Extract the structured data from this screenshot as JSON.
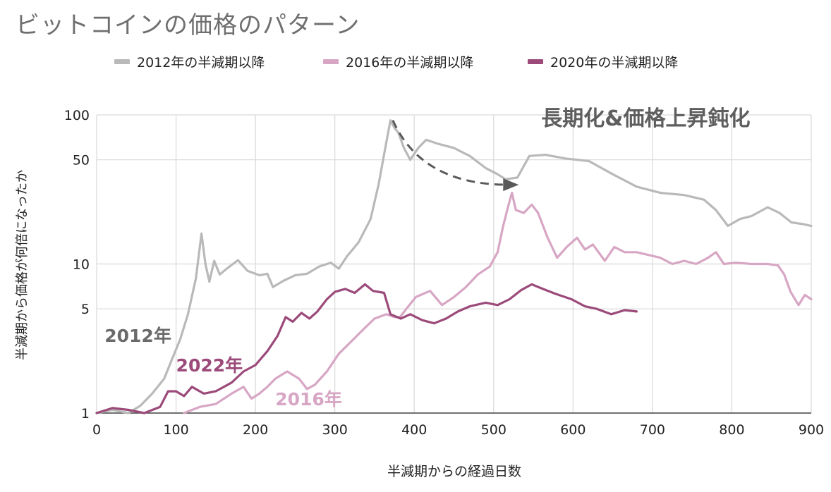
{
  "chart_data": {
    "type": "line",
    "title": "ビットコインの価格のパターン",
    "xlabel": "半減期からの経過日数",
    "ylabel": "半減期から価格が何倍になったか",
    "xlim": [
      0,
      900
    ],
    "ylim": [
      1,
      100
    ],
    "yscale": "log",
    "grid": true,
    "legend_position": "top",
    "x_ticks": [
      0,
      100,
      200,
      300,
      400,
      500,
      600,
      700,
      800,
      900
    ],
    "y_ticks": [
      1,
      5,
      10,
      50,
      100
    ],
    "colors": {
      "2012": "#b9b9b9",
      "2016": "#d7a6c4",
      "2020": "#9b4a7a"
    },
    "series": [
      {
        "name": "2012年の半減期以降",
        "color": "#b9b9b9",
        "points": [
          [
            0,
            1.0
          ],
          [
            20,
            1.05
          ],
          [
            40,
            1.0
          ],
          [
            55,
            1.12
          ],
          [
            70,
            1.35
          ],
          [
            85,
            1.7
          ],
          [
            95,
            2.3
          ],
          [
            105,
            3.1
          ],
          [
            115,
            4.6
          ],
          [
            125,
            8.0
          ],
          [
            132,
            16.0
          ],
          [
            137,
            10.0
          ],
          [
            142,
            7.6
          ],
          [
            148,
            10.5
          ],
          [
            155,
            8.5
          ],
          [
            165,
            9.4
          ],
          [
            178,
            10.6
          ],
          [
            190,
            9.0
          ],
          [
            205,
            8.4
          ],
          [
            215,
            8.6
          ],
          [
            222,
            7.0
          ],
          [
            235,
            7.7
          ],
          [
            250,
            8.4
          ],
          [
            265,
            8.6
          ],
          [
            280,
            9.6
          ],
          [
            295,
            10.2
          ],
          [
            305,
            9.3
          ],
          [
            315,
            11.2
          ],
          [
            330,
            14.0
          ],
          [
            345,
            20.0
          ],
          [
            355,
            34.0
          ],
          [
            363,
            58.0
          ],
          [
            370,
            92.0
          ],
          [
            375,
            82.0
          ],
          [
            380,
            76.0
          ],
          [
            387,
            60.0
          ],
          [
            395,
            50.0
          ],
          [
            405,
            60.0
          ],
          [
            415,
            68.0
          ],
          [
            430,
            64.0
          ],
          [
            450,
            60.0
          ],
          [
            470,
            53.0
          ],
          [
            490,
            44.0
          ],
          [
            505,
            40.0
          ],
          [
            515,
            37.0
          ],
          [
            530,
            38.0
          ],
          [
            545,
            53.0
          ],
          [
            565,
            54.0
          ],
          [
            590,
            51.0
          ],
          [
            620,
            49.0
          ],
          [
            650,
            40.0
          ],
          [
            680,
            33.0
          ],
          [
            710,
            30.0
          ],
          [
            740,
            29.0
          ],
          [
            765,
            27.0
          ],
          [
            780,
            23.0
          ],
          [
            795,
            18.0
          ],
          [
            810,
            20.0
          ],
          [
            825,
            21.0
          ],
          [
            845,
            24.0
          ],
          [
            860,
            22.0
          ],
          [
            875,
            19.0
          ],
          [
            890,
            18.5
          ],
          [
            900,
            18.0
          ]
        ]
      },
      {
        "name": "2016年の半減期以降",
        "color": "#d7a6c4",
        "points": [
          [
            110,
            1.0
          ],
          [
            130,
            1.1
          ],
          [
            150,
            1.15
          ],
          [
            170,
            1.35
          ],
          [
            185,
            1.5
          ],
          [
            195,
            1.25
          ],
          [
            205,
            1.35
          ],
          [
            215,
            1.5
          ],
          [
            225,
            1.7
          ],
          [
            240,
            1.9
          ],
          [
            255,
            1.7
          ],
          [
            265,
            1.45
          ],
          [
            275,
            1.55
          ],
          [
            290,
            1.9
          ],
          [
            305,
            2.5
          ],
          [
            320,
            3.0
          ],
          [
            335,
            3.6
          ],
          [
            350,
            4.3
          ],
          [
            365,
            4.6
          ],
          [
            375,
            4.4
          ],
          [
            382,
            4.4
          ],
          [
            390,
            5.0
          ],
          [
            402,
            6.0
          ],
          [
            420,
            6.6
          ],
          [
            435,
            5.3
          ],
          [
            450,
            6.0
          ],
          [
            465,
            7.0
          ],
          [
            480,
            8.5
          ],
          [
            495,
            9.6
          ],
          [
            505,
            12.0
          ],
          [
            512,
            18.0
          ],
          [
            518,
            24.0
          ],
          [
            523,
            30.0
          ],
          [
            528,
            23.0
          ],
          [
            538,
            22.0
          ],
          [
            548,
            25.0
          ],
          [
            556,
            22.0
          ],
          [
            568,
            15.0
          ],
          [
            580,
            11.0
          ],
          [
            592,
            13.0
          ],
          [
            605,
            15.0
          ],
          [
            615,
            12.5
          ],
          [
            625,
            13.5
          ],
          [
            640,
            10.5
          ],
          [
            652,
            13.0
          ],
          [
            665,
            12.0
          ],
          [
            680,
            12.0
          ],
          [
            695,
            11.5
          ],
          [
            710,
            11.0
          ],
          [
            725,
            10.0
          ],
          [
            740,
            10.5
          ],
          [
            755,
            10.0
          ],
          [
            770,
            11.0
          ],
          [
            780,
            12.0
          ],
          [
            790,
            10.0
          ],
          [
            805,
            10.2
          ],
          [
            825,
            10.0
          ],
          [
            845,
            10.0
          ],
          [
            858,
            9.8
          ],
          [
            866,
            8.5
          ],
          [
            874,
            6.5
          ],
          [
            884,
            5.3
          ],
          [
            892,
            6.2
          ],
          [
            900,
            5.8
          ]
        ]
      },
      {
        "name": "2020年の半減期以降",
        "color": "#9b4a7a",
        "points": [
          [
            0,
            1.0
          ],
          [
            20,
            1.08
          ],
          [
            40,
            1.05
          ],
          [
            60,
            1.0
          ],
          [
            80,
            1.1
          ],
          [
            90,
            1.4
          ],
          [
            100,
            1.4
          ],
          [
            110,
            1.3
          ],
          [
            120,
            1.5
          ],
          [
            135,
            1.35
          ],
          [
            150,
            1.4
          ],
          [
            170,
            1.6
          ],
          [
            185,
            1.9
          ],
          [
            200,
            2.1
          ],
          [
            215,
            2.6
          ],
          [
            228,
            3.3
          ],
          [
            238,
            4.4
          ],
          [
            247,
            4.1
          ],
          [
            258,
            4.7
          ],
          [
            268,
            4.3
          ],
          [
            278,
            4.8
          ],
          [
            290,
            5.8
          ],
          [
            300,
            6.5
          ],
          [
            313,
            6.8
          ],
          [
            325,
            6.4
          ],
          [
            338,
            7.3
          ],
          [
            348,
            6.6
          ],
          [
            362,
            6.4
          ],
          [
            370,
            4.6
          ],
          [
            383,
            4.3
          ],
          [
            395,
            4.6
          ],
          [
            410,
            4.2
          ],
          [
            425,
            4.0
          ],
          [
            440,
            4.3
          ],
          [
            455,
            4.8
          ],
          [
            470,
            5.2
          ],
          [
            490,
            5.5
          ],
          [
            505,
            5.3
          ],
          [
            520,
            5.8
          ],
          [
            535,
            6.7
          ],
          [
            548,
            7.3
          ],
          [
            562,
            6.8
          ],
          [
            578,
            6.3
          ],
          [
            598,
            5.8
          ],
          [
            615,
            5.2
          ],
          [
            630,
            5.0
          ],
          [
            648,
            4.6
          ],
          [
            665,
            4.9
          ],
          [
            680,
            4.8
          ]
        ]
      }
    ],
    "annotations": [
      {
        "text": "長期化&価格上昇鈍化",
        "x": 560,
        "y": 85
      },
      {
        "text": "2012年",
        "x": 10,
        "y": 3.0
      },
      {
        "text": "2022年",
        "x": 100,
        "y": 1.9
      },
      {
        "text": "2016年",
        "x": 225,
        "y": 1.13
      }
    ],
    "arrow": {
      "from": [
        373,
        92
      ],
      "to": [
        528,
        34
      ]
    }
  }
}
